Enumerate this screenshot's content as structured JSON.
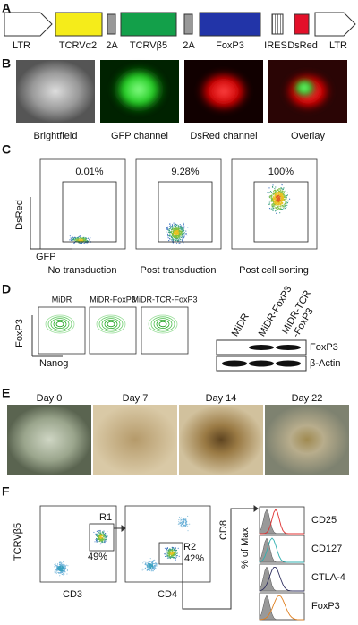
{
  "panels": {
    "A": {
      "letter": "A",
      "elements": [
        "LTR",
        "TCRVα2",
        "2A",
        "TCRVβ5",
        "2A",
        "FoxP3",
        "IRES",
        "DsRed",
        "LTR"
      ]
    },
    "B": {
      "letter": "B",
      "captions": [
        "Brightfield",
        "GFP channel",
        "DsRed channel",
        "Overlay"
      ]
    },
    "C": {
      "letter": "C",
      "y_axis": "DsRed",
      "x_axis": "GFP",
      "gates": [
        "0.01%",
        "9.28%",
        "100%"
      ],
      "captions": [
        "No transduction",
        "Post transduction",
        "Post cell sorting"
      ]
    },
    "D": {
      "letter": "D",
      "plot_titles": [
        "MiDR",
        "MiDR-FoxP3",
        "MiDR-TCR-FoxP3"
      ],
      "y_axis": "FoxP3",
      "x_axis": "Nanog",
      "blot_lanes": [
        "MiDR",
        "MiDR-FoxP3",
        [
          "MiDR-TCR",
          "-FoxP3"
        ]
      ],
      "blot_bands": [
        "FoxP3",
        "β-Actin"
      ]
    },
    "E": {
      "letter": "E",
      "captions": [
        "Day 0",
        "Day 7",
        "Day 14",
        "Day 22"
      ]
    },
    "F": {
      "letter": "F",
      "plot1": {
        "y_axis": "TCRVβ5",
        "x_axis": "CD3",
        "gate": "R1",
        "percent": "49%"
      },
      "plot2": {
        "y_axis": "CD8",
        "x_axis": "CD4",
        "gate": "R2",
        "percent": "42%"
      },
      "hist_axis": "% of Max",
      "markers": [
        "CD25",
        "CD127",
        "CTLA-4",
        "FoxP3"
      ]
    }
  }
}
